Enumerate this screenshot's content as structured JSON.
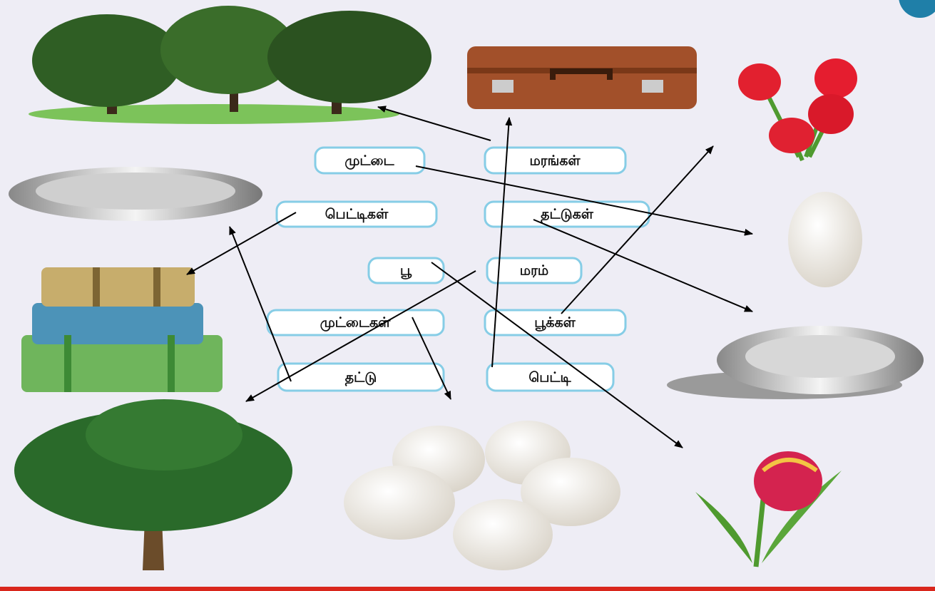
{
  "rows": [
    [
      "முட்டை",
      "மரங்கள்"
    ],
    [
      "பெட்டிகள்",
      "தட்டுகள்"
    ],
    [
      "பூ",
      "மரம்"
    ],
    [
      "முட்டைகள்",
      "பூக்கள்"
    ],
    [
      "தட்டு",
      "பெட்டி"
    ]
  ]
}
